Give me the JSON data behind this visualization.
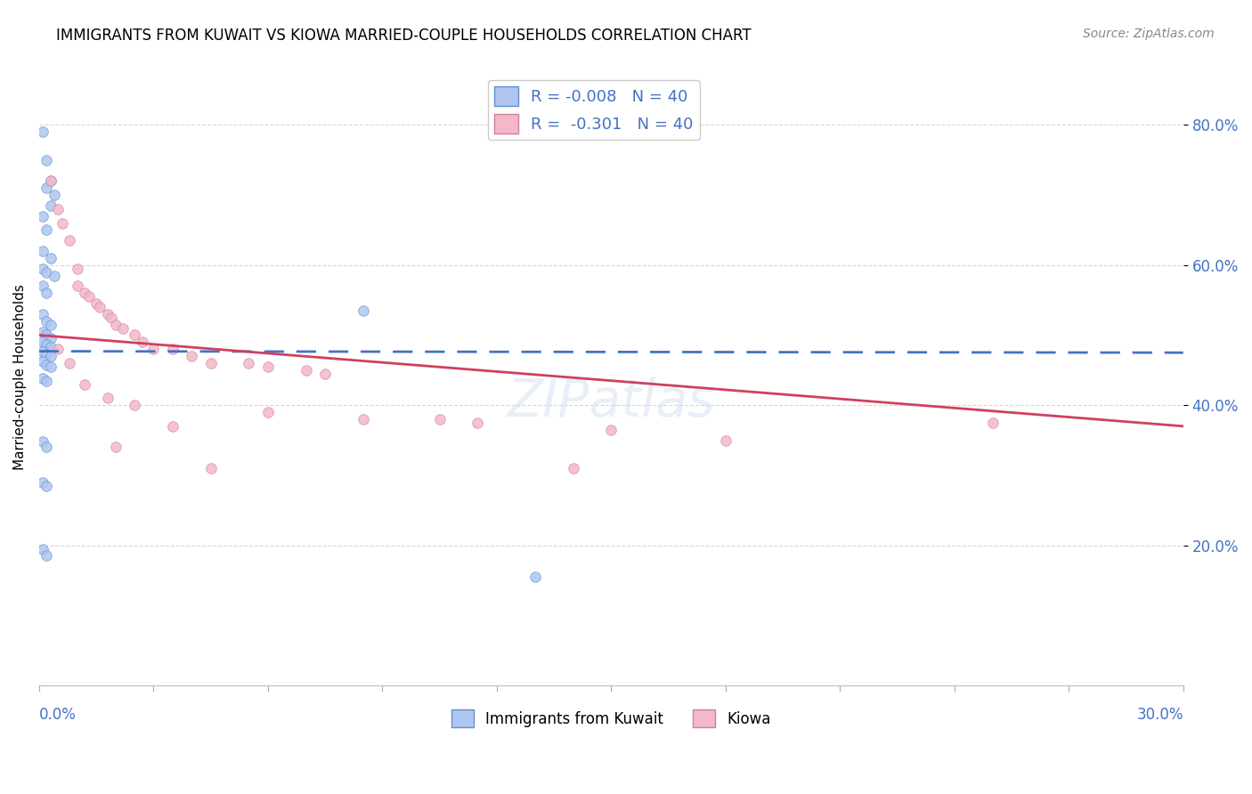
{
  "title": "IMMIGRANTS FROM KUWAIT VS KIOWA MARRIED-COUPLE HOUSEHOLDS CORRELATION CHART",
  "source": "Source: ZipAtlas.com",
  "ylabel": "Married-couple Households",
  "ytick_values": [
    0.2,
    0.4,
    0.6,
    0.8
  ],
  "xmin": 0.0,
  "xmax": 0.3,
  "ymin": 0.0,
  "ymax": 0.88,
  "kuwait_color": "#aec6f0",
  "kiowa_color": "#f4b8c8",
  "kuwait_edge_color": "#6090d0",
  "kiowa_edge_color": "#d080a0",
  "kuwait_line_color": "#4472c4",
  "kiowa_line_color": "#d04060",
  "kuwait_scatter": [
    [
      0.001,
      0.79
    ],
    [
      0.002,
      0.75
    ],
    [
      0.002,
      0.71
    ],
    [
      0.003,
      0.72
    ],
    [
      0.003,
      0.685
    ],
    [
      0.004,
      0.7
    ],
    [
      0.001,
      0.67
    ],
    [
      0.002,
      0.65
    ],
    [
      0.001,
      0.62
    ],
    [
      0.003,
      0.61
    ],
    [
      0.001,
      0.595
    ],
    [
      0.002,
      0.59
    ],
    [
      0.004,
      0.585
    ],
    [
      0.001,
      0.57
    ],
    [
      0.002,
      0.56
    ],
    [
      0.001,
      0.53
    ],
    [
      0.002,
      0.52
    ],
    [
      0.003,
      0.515
    ],
    [
      0.001,
      0.505
    ],
    [
      0.002,
      0.5
    ],
    [
      0.003,
      0.495
    ],
    [
      0.001,
      0.49
    ],
    [
      0.002,
      0.487
    ],
    [
      0.003,
      0.483
    ],
    [
      0.001,
      0.477
    ],
    [
      0.002,
      0.473
    ],
    [
      0.003,
      0.47
    ],
    [
      0.001,
      0.462
    ],
    [
      0.002,
      0.458
    ],
    [
      0.003,
      0.455
    ],
    [
      0.001,
      0.438
    ],
    [
      0.002,
      0.435
    ],
    [
      0.001,
      0.348
    ],
    [
      0.002,
      0.34
    ],
    [
      0.001,
      0.29
    ],
    [
      0.002,
      0.285
    ],
    [
      0.001,
      0.195
    ],
    [
      0.002,
      0.185
    ],
    [
      0.085,
      0.535
    ],
    [
      0.13,
      0.155
    ]
  ],
  "kiowa_scatter": [
    [
      0.003,
      0.72
    ],
    [
      0.005,
      0.68
    ],
    [
      0.006,
      0.66
    ],
    [
      0.008,
      0.635
    ],
    [
      0.01,
      0.595
    ],
    [
      0.01,
      0.57
    ],
    [
      0.012,
      0.56
    ],
    [
      0.013,
      0.555
    ],
    [
      0.015,
      0.545
    ],
    [
      0.016,
      0.54
    ],
    [
      0.018,
      0.53
    ],
    [
      0.019,
      0.525
    ],
    [
      0.02,
      0.515
    ],
    [
      0.022,
      0.51
    ],
    [
      0.025,
      0.5
    ],
    [
      0.027,
      0.49
    ],
    [
      0.03,
      0.48
    ],
    [
      0.035,
      0.48
    ],
    [
      0.04,
      0.47
    ],
    [
      0.045,
      0.46
    ],
    [
      0.055,
      0.46
    ],
    [
      0.06,
      0.455
    ],
    [
      0.07,
      0.45
    ],
    [
      0.075,
      0.445
    ],
    [
      0.005,
      0.48
    ],
    [
      0.008,
      0.46
    ],
    [
      0.012,
      0.43
    ],
    [
      0.018,
      0.41
    ],
    [
      0.025,
      0.4
    ],
    [
      0.035,
      0.37
    ],
    [
      0.06,
      0.39
    ],
    [
      0.085,
      0.38
    ],
    [
      0.105,
      0.38
    ],
    [
      0.115,
      0.375
    ],
    [
      0.15,
      0.365
    ],
    [
      0.18,
      0.35
    ],
    [
      0.25,
      0.375
    ],
    [
      0.02,
      0.34
    ],
    [
      0.045,
      0.31
    ],
    [
      0.14,
      0.31
    ]
  ],
  "background_color": "#ffffff",
  "grid_color": "#cccccc",
  "title_fontsize": 12,
  "tick_label_color": "#4472c4",
  "watermark_color": "#c8d8f0",
  "watermark_alpha": 0.4
}
